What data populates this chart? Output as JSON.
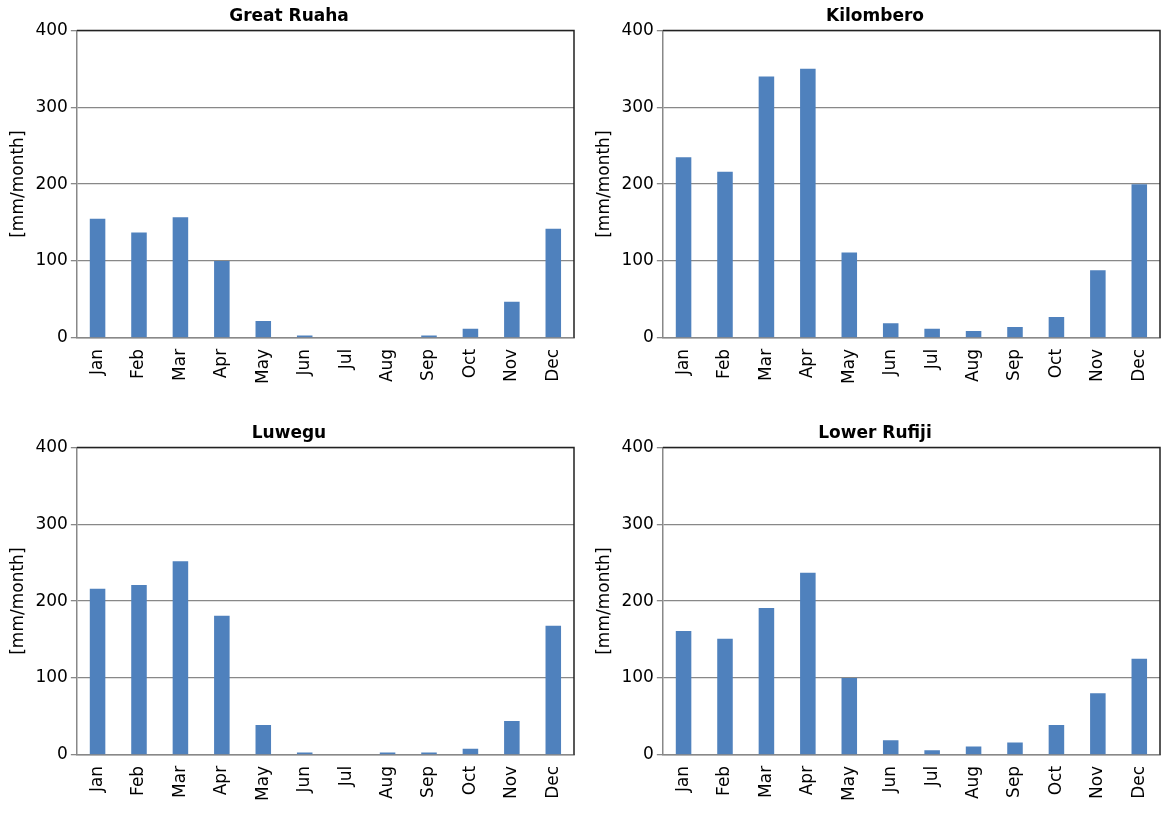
{
  "chart_data": [
    {
      "type": "bar",
      "title": "Great Ruaha",
      "ylabel": "[mm/month]",
      "categories": [
        "Jan",
        "Feb",
        "Mar",
        "Apr",
        "May",
        "Jun",
        "Jul",
        "Aug",
        "Sep",
        "Oct",
        "Nov",
        "Dec"
      ],
      "values": [
        155,
        137,
        157,
        100,
        22,
        3,
        0,
        0,
        3,
        12,
        47,
        142
      ],
      "color": "#4f81bd",
      "ylim": [
        0,
        400
      ],
      "yticks": [
        0,
        100,
        200,
        300,
        400
      ],
      "grid": "y"
    },
    {
      "type": "bar",
      "title": "Kilombero",
      "ylabel": "[mm/month]",
      "categories": [
        "Jan",
        "Feb",
        "Mar",
        "Apr",
        "May",
        "Jun",
        "Jul",
        "Aug",
        "Sep",
        "Oct",
        "Nov",
        "Dec"
      ],
      "values": [
        235,
        216,
        340,
        350,
        111,
        19,
        12,
        9,
        14,
        27,
        88,
        200
      ],
      "color": "#4f81bd",
      "ylim": [
        0,
        400
      ],
      "yticks": [
        0,
        100,
        200,
        300,
        400
      ],
      "grid": "y"
    },
    {
      "type": "bar",
      "title": "Luwegu",
      "ylabel": "[mm/month]",
      "categories": [
        "Jan",
        "Feb",
        "Mar",
        "Apr",
        "May",
        "Jun",
        "Jul",
        "Aug",
        "Sep",
        "Oct",
        "Nov",
        "Dec"
      ],
      "values": [
        216,
        221,
        252,
        181,
        39,
        3,
        0,
        3,
        3,
        8,
        44,
        168
      ],
      "color": "#4f81bd",
      "ylim": [
        0,
        400
      ],
      "yticks": [
        0,
        100,
        200,
        300,
        400
      ],
      "grid": "y"
    },
    {
      "type": "bar",
      "title": "Lower Rufiji",
      "ylabel": "[mm/month]",
      "categories": [
        "Jan",
        "Feb",
        "Mar",
        "Apr",
        "May",
        "Jun",
        "Jul",
        "Aug",
        "Sep",
        "Oct",
        "Nov",
        "Dec"
      ],
      "values": [
        161,
        151,
        191,
        237,
        100,
        19,
        6,
        11,
        16,
        39,
        80,
        125
      ],
      "color": "#4f81bd",
      "ylim": [
        0,
        400
      ],
      "yticks": [
        0,
        100,
        200,
        300,
        400
      ],
      "grid": "y"
    }
  ]
}
